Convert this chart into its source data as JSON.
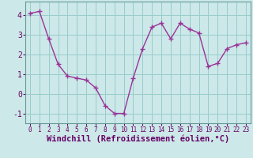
{
  "x": [
    0,
    1,
    2,
    3,
    4,
    5,
    6,
    7,
    8,
    9,
    10,
    11,
    12,
    13,
    14,
    15,
    16,
    17,
    18,
    19,
    20,
    21,
    22,
    23
  ],
  "y": [
    4.1,
    4.2,
    2.8,
    1.5,
    0.9,
    0.8,
    0.7,
    0.3,
    -0.6,
    -1.0,
    -1.0,
    0.8,
    2.3,
    3.4,
    3.6,
    2.8,
    3.6,
    3.3,
    3.1,
    1.4,
    1.55,
    2.3,
    2.5,
    2.6
  ],
  "line_color": "#993399",
  "marker_color": "#993399",
  "bg_color": "#cce8e8",
  "grid_color": "#99cccc",
  "xlabel": "Windchill (Refroidissement éolien,°C)",
  "xlim": [
    -0.5,
    23.5
  ],
  "ylim": [
    -1.5,
    4.7
  ],
  "yticks": [
    -1,
    0,
    1,
    2,
    3,
    4
  ],
  "xticks": [
    0,
    1,
    2,
    3,
    4,
    5,
    6,
    7,
    8,
    9,
    10,
    11,
    12,
    13,
    14,
    15,
    16,
    17,
    18,
    19,
    20,
    21,
    22,
    23
  ],
  "xtick_fontsize": 5.5,
  "ytick_fontsize": 7,
  "xlabel_fontsize": 7.5,
  "spine_color": "#669999",
  "text_color": "#660066"
}
